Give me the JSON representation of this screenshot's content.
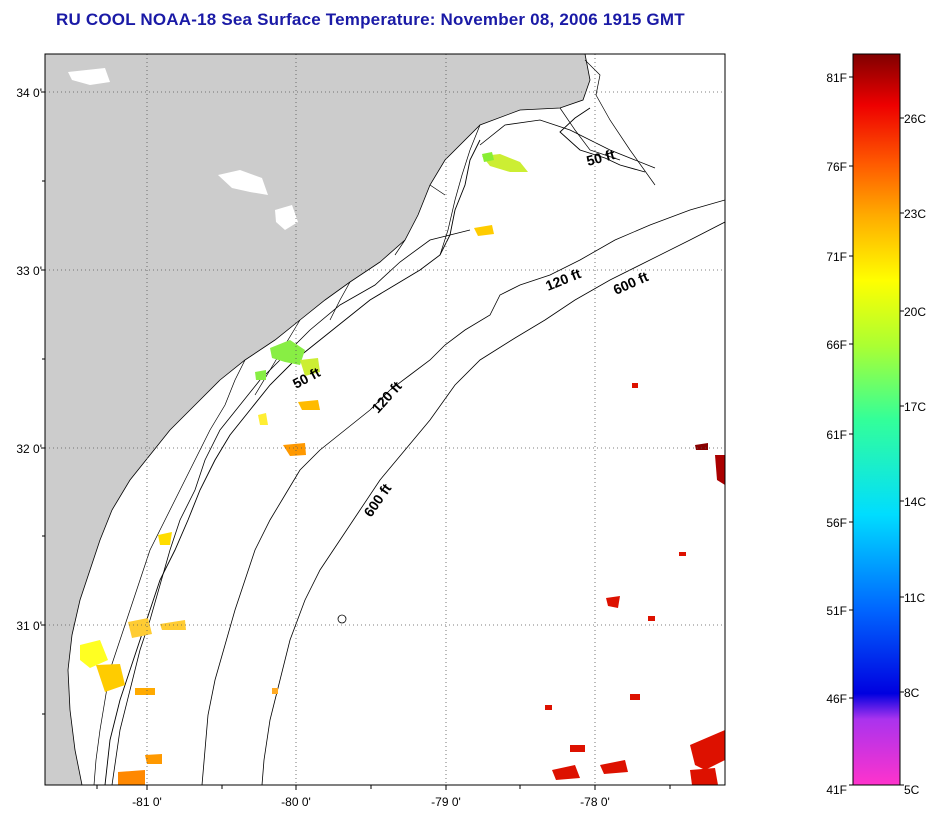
{
  "title": "RU COOL  NOAA-18  Sea Surface Temperature:  November 08, 2006 1915 GMT",
  "map": {
    "lat_labels": [
      "34 0'",
      "33 0'",
      "32 0'",
      "31 0'"
    ],
    "lon_labels": [
      "-81 0'",
      "-80 0'",
      "-79 0'",
      "-78 0'"
    ],
    "contour_labels": [
      "50 ft",
      "120 ft",
      "600 ft",
      "50 ft",
      "120 ft",
      "600 ft"
    ],
    "land_color": "#cccccc",
    "water_color": "#ffffff"
  },
  "colorbar": {
    "fahrenheit": [
      "81F",
      "76F",
      "71F",
      "66F",
      "61F",
      "56F",
      "51F",
      "46F",
      "41F"
    ],
    "celsius": [
      "26C",
      "23C",
      "20C",
      "17C",
      "14C",
      "11C",
      "8C",
      "5C"
    ]
  }
}
